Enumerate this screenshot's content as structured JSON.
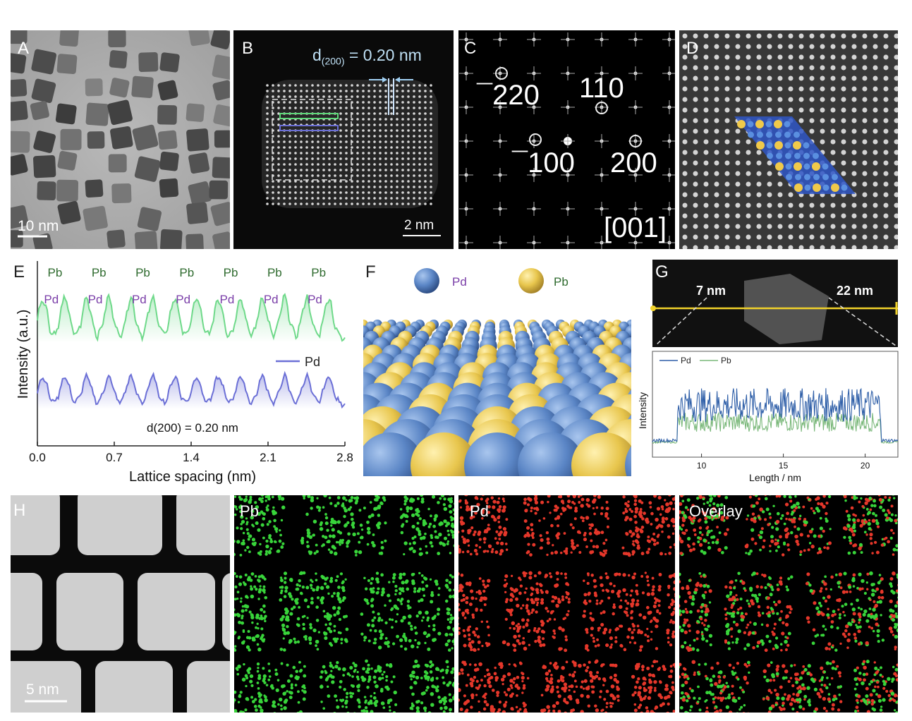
{
  "panels": {
    "A": {
      "label": "A",
      "scale_bar": "10 nm"
    },
    "B": {
      "label": "B",
      "d_prefix": "d",
      "d_sub": "(200)",
      "d_value": " = 0.20 nm",
      "scale_bar": "2 nm"
    },
    "C": {
      "label": "C",
      "spots": [
        "¯2",
        "20",
        "110",
        "¯1",
        "00",
        "200"
      ],
      "zone_axis": "[001]"
    },
    "D": {
      "label": "D"
    },
    "E": {
      "label": "E"
    },
    "F": {
      "label": "F",
      "legend": [
        "Pd",
        "Pb"
      ]
    },
    "G": {
      "label": "G",
      "left_size": "7 nm",
      "right_size": "22 nm"
    },
    "H": {
      "label": "H",
      "scale_bar": "5 nm",
      "maps": [
        "Pb",
        "Pd",
        "Overlay"
      ]
    }
  },
  "colors": {
    "pd": "#5b86c6",
    "pb": "#e8c64d",
    "green_trace": "#6fd98a",
    "purple_trace": "#6b6fd6",
    "pd_label": "#7a3ea8",
    "pb_label": "#2f6b2f"
  },
  "chart_data": [
    {
      "type": "line",
      "panel": "E",
      "xlabel": "Lattice spacing (nm)",
      "ylabel": "Intensity (a.u.)",
      "x_ticks": [
        "0.0",
        "0.7",
        "1.4",
        "2.1",
        "2.8"
      ],
      "xlim": [
        0.0,
        2.8
      ],
      "annotation": "d(200) = 0.20 nm",
      "pb_peak_labels": [
        "Pb",
        "Pb",
        "Pb",
        "Pb",
        "Pb",
        "Pb",
        "Pb"
      ],
      "pd_peak_labels": [
        "Pd",
        "Pd",
        "Pd",
        "Pd",
        "Pd",
        "Pd",
        "Pd"
      ],
      "pb_peaks_x": [
        0.25,
        0.65,
        1.05,
        1.45,
        1.85,
        2.25,
        2.65
      ],
      "pd_peaks_x": [
        0.05,
        0.45,
        0.85,
        1.25,
        1.65,
        2.05,
        2.45
      ],
      "series": [
        {
          "name": "",
          "color": "#6fd98a"
        },
        {
          "name": "Pd",
          "color": "#6b6fd6"
        }
      ]
    },
    {
      "type": "line",
      "panel": "G",
      "xlabel": "Length / nm",
      "ylabel": "Intensity",
      "x_ticks": [
        "10",
        "15",
        "20"
      ],
      "xlim": [
        7,
        22
      ],
      "series": [
        {
          "name": "Pd",
          "color": "#2f5fa8"
        },
        {
          "name": "Pb",
          "color": "#7ab87a"
        }
      ]
    }
  ]
}
